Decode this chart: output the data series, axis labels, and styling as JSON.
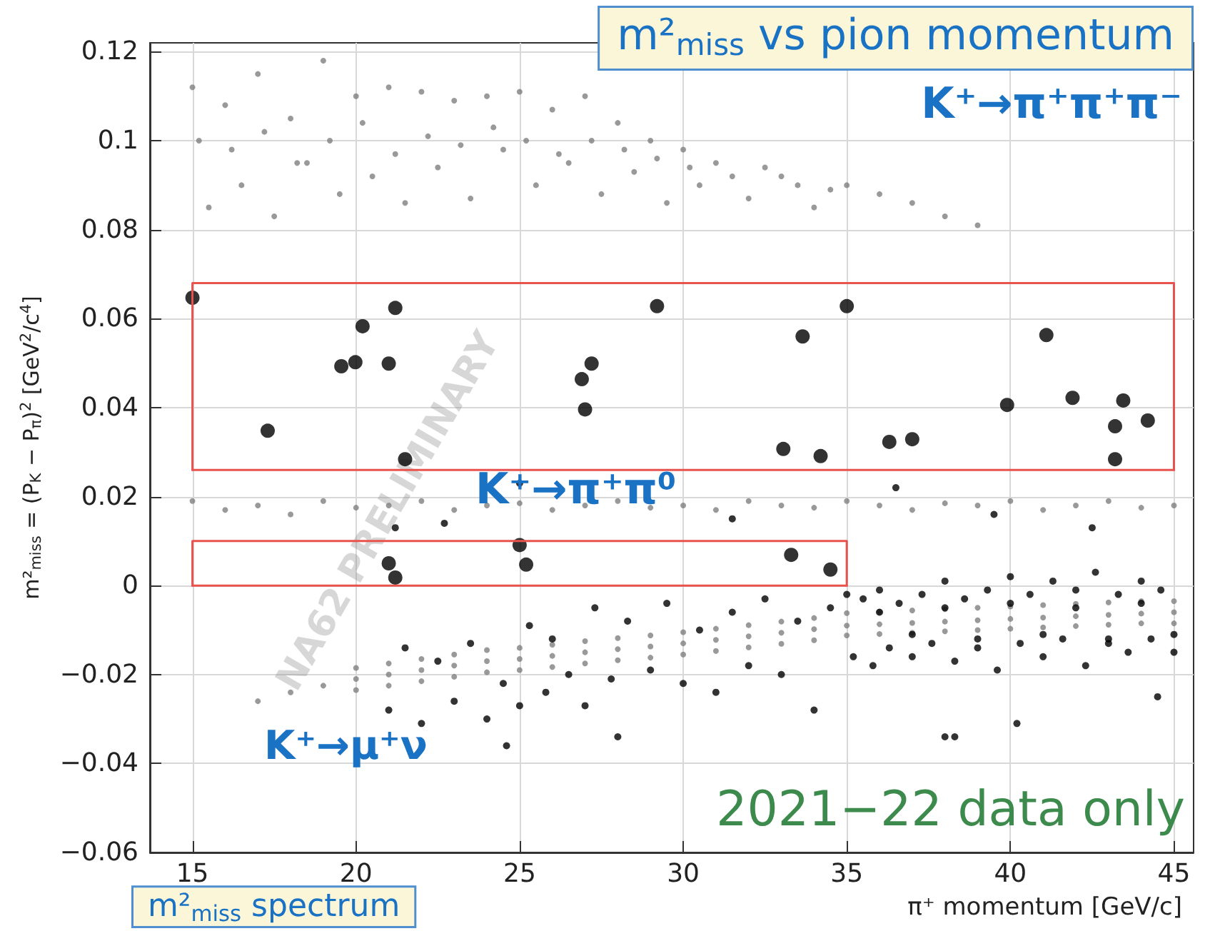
{
  "chart_data": {
    "type": "scatter",
    "title": "m²$_{miss}$ vs pion momentum",
    "xlabel": "π⁺ momentum [GeV/c]",
    "ylabel": "m²$_{miss}$ = (P$_{K}$ − P$_{π}$)$^{2}$ [GeV$^{2}$/c$^{4}$]",
    "annotations": [
      "K⁺→π⁺π⁺π⁻",
      "K⁺→π⁺π⁰",
      "K⁺→μ⁺ν",
      "2021−22 data only",
      "NA62 PRELIMINARY",
      "m²$_{miss}$ spectrum"
    ],
    "xlim": [
      13.7,
      45.6
    ],
    "ylim": [
      -0.06,
      0.122
    ],
    "xticks": [
      15,
      20,
      25,
      30,
      35,
      40,
      45
    ],
    "yticks": [
      {
        "value": -0.06,
        "label": "−0.06"
      },
      {
        "value": -0.04,
        "label": "−0.04"
      },
      {
        "value": -0.02,
        "label": "−0.02"
      },
      0,
      0.02,
      0.04,
      0.06,
      0.08,
      0.1,
      0.12
    ],
    "grid": true,
    "marker": "circle",
    "series": [
      {
        "color": "#7f7f7f",
        "x": [
          15,
          15.5,
          16,
          16.5,
          17,
          17.5,
          18,
          18.5,
          19,
          19.5,
          20,
          20.5,
          21,
          21.5,
          22,
          22.5,
          23,
          23.5,
          24,
          24.5,
          25,
          25.5,
          26,
          26.5,
          27,
          27.5,
          28,
          28.5,
          29,
          29.5,
          30,
          30.5,
          31,
          32,
          33,
          34,
          35,
          36,
          37,
          38,
          39,
          15.2,
          16.2,
          17.2,
          18.2,
          19.2,
          20.2,
          21.2,
          22.2,
          23.2,
          24.2,
          25.2,
          26.2,
          27.2,
          28.2,
          29.2,
          30.2,
          31.5,
          32.5,
          33.5,
          34.5
        ],
        "values": [
          0.112,
          0.085,
          0.108,
          0.09,
          0.115,
          0.083,
          0.105,
          0.095,
          0.118,
          0.088,
          0.11,
          0.092,
          0.112,
          0.086,
          0.111,
          0.094,
          0.109,
          0.087,
          0.11,
          0.098,
          0.111,
          0.09,
          0.107,
          0.095,
          0.11,
          0.088,
          0.104,
          0.093,
          0.1,
          0.086,
          0.098,
          0.09,
          0.095,
          0.087,
          0.092,
          0.085,
          0.09,
          0.088,
          0.086,
          0.083,
          0.081,
          0.1,
          0.098,
          0.102,
          0.095,
          0.1,
          0.104,
          0.097,
          0.101,
          0.099,
          0.103,
          0.1,
          0.097,
          0.1,
          0.098,
          0.096,
          0.094,
          0.092,
          0.094,
          0.09,
          0.089
        ]
      },
      {
        "color": "#7f7f7f",
        "x": [
          15,
          16,
          17,
          18,
          19,
          20,
          21,
          22,
          23,
          24,
          25,
          26,
          27,
          28,
          29,
          30,
          31,
          32,
          33,
          34,
          35,
          36,
          37,
          38,
          39,
          40,
          41,
          42,
          43,
          44,
          45
        ],
        "values": [
          0.019,
          0.017,
          0.018,
          0.016,
          0.019,
          0.0175,
          0.018,
          0.019,
          0.017,
          0.018,
          0.0185,
          0.017,
          0.018,
          0.019,
          0.0175,
          0.018,
          0.017,
          0.019,
          0.018,
          0.0175,
          0.019,
          0.018,
          0.017,
          0.0185,
          0.018,
          0.019,
          0.017,
          0.018,
          0.019,
          0.0175,
          0.018
        ]
      },
      {
        "color": "#7f7f7f",
        "x": [
          17,
          18,
          19,
          20,
          21,
          22,
          23,
          24,
          25,
          26,
          27,
          28,
          29,
          30,
          31,
          32,
          33,
          34,
          35,
          36,
          37,
          38,
          39,
          40,
          41,
          42,
          43,
          44,
          45,
          20,
          21,
          22,
          23,
          24,
          25,
          26,
          27,
          28,
          29,
          30,
          31,
          32,
          33,
          34,
          35,
          36,
          37,
          38,
          39,
          40,
          41,
          42,
          43,
          44,
          45,
          20,
          21,
          22,
          23,
          24,
          25,
          26,
          27,
          28,
          29,
          30,
          31,
          32,
          33,
          34,
          35,
          36,
          37,
          38,
          39,
          40,
          41,
          42,
          43,
          44,
          45
        ],
        "values": [
          -0.026,
          -0.024,
          -0.0225,
          -0.021,
          -0.02,
          -0.019,
          -0.018,
          -0.017,
          -0.0165,
          -0.0158,
          -0.015,
          -0.0143,
          -0.0137,
          -0.013,
          -0.0122,
          -0.0114,
          -0.0106,
          -0.0098,
          -0.009,
          -0.0087,
          -0.0084,
          -0.0081,
          -0.0078,
          -0.0075,
          -0.0072,
          -0.0069,
          -0.0066,
          -0.0063,
          -0.006,
          -0.0185,
          -0.0175,
          -0.0165,
          -0.0155,
          -0.0145,
          -0.014,
          -0.0133,
          -0.0125,
          -0.0118,
          -0.0112,
          -0.0105,
          -0.0097,
          -0.0089,
          -0.0081,
          -0.0073,
          -0.0062,
          -0.0059,
          -0.0056,
          -0.0053,
          -0.005,
          -0.0047,
          -0.0044,
          -0.0041,
          -0.0038,
          -0.0035,
          -0.0035,
          -0.0235,
          -0.0225,
          -0.0215,
          -0.0205,
          -0.0195,
          -0.019,
          -0.0183,
          -0.0175,
          -0.0168,
          -0.0162,
          -0.0155,
          -0.0147,
          -0.0139,
          -0.0131,
          -0.0123,
          -0.0112,
          -0.0109,
          -0.0106,
          -0.0103,
          -0.01,
          -0.0097,
          -0.0094,
          -0.0091,
          -0.0088,
          -0.0085,
          -0.0085
        ]
      },
      {
        "color": "#000000",
        "x": [
          21,
          21.5,
          22,
          22.5,
          23,
          23.5,
          24,
          24.6,
          24.5,
          25,
          25.3,
          25.8,
          26,
          26.5,
          27,
          27.3,
          27.8,
          28,
          28.3,
          29,
          29.5,
          30,
          30.5,
          31,
          31.5,
          32,
          32.5,
          33,
          33.5,
          34,
          34.5,
          35,
          35.2,
          35.5,
          35.8,
          36,
          36.3,
          36.6,
          37,
          37.3,
          37.6,
          38,
          38.3,
          38.6,
          39,
          39.3,
          39.6,
          40,
          40.3,
          40.6,
          41,
          41.3,
          41.6,
          42,
          42.3,
          42.6,
          43,
          43.3,
          43.6,
          44,
          44.3,
          44.6,
          45,
          36,
          37,
          38,
          39,
          40,
          41,
          42,
          43,
          44,
          45,
          38,
          38.3,
          40.2,
          44.5,
          21.2,
          22.7,
          25,
          31.5,
          36.5,
          39.5,
          42.5
        ],
        "values": [
          -0.028,
          -0.014,
          -0.031,
          -0.017,
          -0.026,
          -0.013,
          -0.03,
          -0.036,
          -0.022,
          -0.027,
          -0.009,
          -0.024,
          -0.012,
          -0.02,
          -0.027,
          -0.005,
          -0.021,
          -0.034,
          -0.008,
          -0.019,
          -0.004,
          -0.022,
          -0.01,
          -0.024,
          -0.006,
          -0.018,
          -0.003,
          -0.02,
          -0.008,
          -0.028,
          -0.005,
          -0.002,
          -0.016,
          -0.003,
          -0.018,
          -0.001,
          -0.014,
          -0.004,
          -0.016,
          -0.002,
          -0.013,
          0.001,
          -0.017,
          -0.003,
          -0.014,
          -0.001,
          -0.019,
          0.002,
          -0.013,
          -0.002,
          -0.016,
          0.001,
          -0.012,
          -0.001,
          -0.018,
          0.003,
          -0.013,
          -0.002,
          -0.015,
          0.001,
          -0.012,
          -0.001,
          -0.015,
          -0.006,
          -0.011,
          -0.005,
          -0.012,
          -0.004,
          -0.011,
          -0.005,
          -0.012,
          -0.004,
          -0.011,
          -0.034,
          -0.034,
          -0.031,
          -0.025,
          0.013,
          0.014,
          0.023,
          0.015,
          0.022,
          0.016,
          0.013
        ]
      },
      {
        "color": "#000000",
        "x": [
          15,
          17.3,
          19.55,
          19.98,
          20.2,
          21,
          21.2,
          21.5,
          21,
          21.2,
          25,
          25.2,
          26.9,
          27.2,
          27,
          29.2,
          35,
          33.65,
          33.06,
          34.2,
          36.3,
          37,
          39.9,
          41.1,
          41.9,
          43.45,
          43.2,
          43.2,
          44.2,
          33.3,
          34.5
        ],
        "values": [
          0.0647,
          0.0348,
          0.0493,
          0.0502,
          0.0583,
          0.0499,
          0.0624,
          0.0284,
          0.005,
          0.0018,
          0.0091,
          0.0047,
          0.0464,
          0.0499,
          0.0396,
          0.0628,
          0.0628,
          0.056,
          0.0307,
          0.0291,
          0.0323,
          0.0329,
          0.0406,
          0.0563,
          0.0422,
          0.0416,
          0.0358,
          0.0284,
          0.0371,
          0.0069,
          0.0036
        ]
      },
      {
        "type": "line",
        "color": "#e8534f",
        "marker": "none",
        "line_style": "solid",
        "x": [
          15,
          15,
          45,
          45
        ],
        "values": [
          0.026,
          0.068,
          0.068,
          0.026
        ]
      },
      {
        "type": "line",
        "color": "#e8534f",
        "marker": "none",
        "line_style": "solid",
        "x": [
          15,
          45
        ],
        "values": [
          0.026,
          0.026
        ]
      },
      {
        "type": "line",
        "color": "#e8534f",
        "marker": "none",
        "line_style": "solid",
        "x": [
          15,
          15,
          35,
          35
        ],
        "values": [
          0,
          0.01,
          0.01,
          0
        ]
      },
      {
        "type": "line",
        "color": "#e8534f",
        "marker": "none",
        "line_style": "solid",
        "x": [
          15,
          35
        ],
        "values": [
          0,
          0
        ]
      }
    ]
  }
}
